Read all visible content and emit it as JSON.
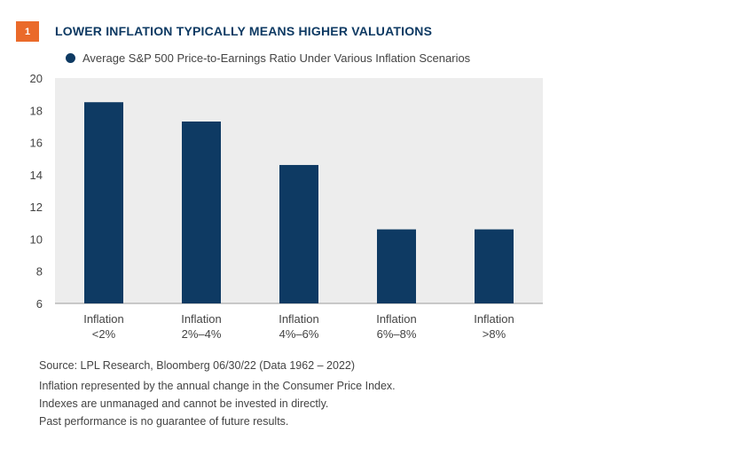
{
  "badge_number": "1",
  "title": "LOWER INFLATION TYPICALLY MEANS HIGHER VALUATIONS",
  "colors": {
    "accent": "#ea6a2a",
    "bar": "#0e3a63",
    "plot_background": "#ededed",
    "title": "#0e3a63"
  },
  "chart_data": {
    "type": "bar",
    "title": "LOWER INFLATION TYPICALLY MEANS HIGHER VALUATIONS",
    "legend": [
      "Average S&P 500 Price-to-Earnings Ratio Under Various Inflation Scenarios"
    ],
    "legend_placement": "top-left",
    "categories": [
      [
        "Inflation",
        "<2%"
      ],
      [
        "Inflation",
        "2%–4%"
      ],
      [
        "Inflation",
        "4%–6%"
      ],
      [
        "Inflation",
        "6%–8%"
      ],
      [
        "Inflation",
        ">8%"
      ]
    ],
    "series": [
      {
        "name": "Average S&P 500 Price-to-Earnings Ratio Under Various Inflation Scenarios",
        "values": [
          18.5,
          17.3,
          14.6,
          10.6,
          10.6
        ]
      }
    ],
    "xlabel": "",
    "ylabel": "",
    "ylim": [
      6,
      20
    ],
    "yticks": [
      6,
      8,
      10,
      12,
      14,
      16,
      18,
      20
    ],
    "grid": false
  },
  "footnotes": {
    "source": "Source: LPL Research, Bloomberg  06/30/22 (Data 1962 – 2022)",
    "lines": [
      "Inflation represented by the annual change in the Consumer Price Index.",
      "Indexes are unmanaged and cannot be invested in directly.",
      "Past performance is no guarantee of future results."
    ]
  }
}
